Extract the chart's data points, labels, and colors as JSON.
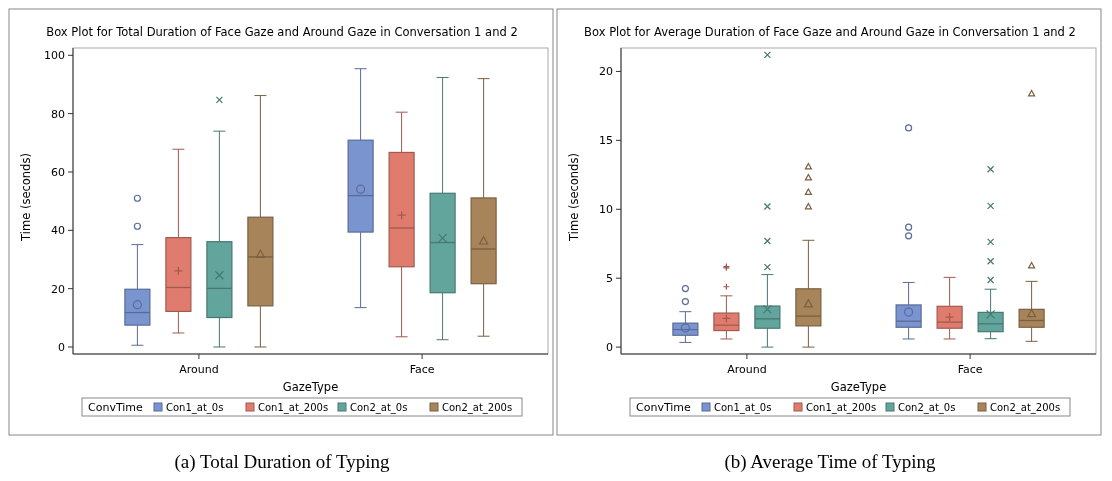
{
  "chart_data": [
    {
      "type": "box",
      "title": "Box Plot for Total Duration of Face Gaze and Around Gaze in Conversation 1 and 2",
      "xlabel": "GazeType",
      "ylabel": "Time (seconds)",
      "legend_title": "ConvTime",
      "legend": "bottom",
      "categories": [
        "Around",
        "Face"
      ],
      "ylim": [
        -2.4,
        102.5
      ],
      "yticks": [
        0,
        20,
        40,
        60,
        80,
        100
      ],
      "annotations": [
        "(a) Total Duration of Typing"
      ],
      "series": [
        {
          "name": "Con1_at_0s",
          "color": "#7a94d0",
          "marker": "circle",
          "boxes": [
            {
              "low": 0.6,
              "q1": 7.5,
              "median": 11.8,
              "q3": 19.8,
              "high": 35.1,
              "mean": 14.5,
              "outliers": [
                41.4,
                51
              ]
            },
            {
              "low": 13.5,
              "q1": 39.4,
              "median": 51.9,
              "q3": 70.9,
              "high": 95.4,
              "mean": 54.1
            }
          ]
        },
        {
          "name": "Con1_at_200s",
          "color": "#e07c6e",
          "marker": "cross",
          "boxes": [
            {
              "low": 4.8,
              "q1": 12.2,
              "median": 20.4,
              "q3": 37.5,
              "high": 67.8,
              "mean": 26.1
            },
            {
              "low": 3.5,
              "q1": 27.5,
              "median": 40.8,
              "q3": 66.7,
              "high": 80.5,
              "mean": 45.2
            }
          ]
        },
        {
          "name": "Con2_at_0s",
          "color": "#62a59c",
          "marker": "x",
          "boxes": [
            {
              "low": 0,
              "q1": 10.1,
              "median": 20.1,
              "q3": 36.1,
              "high": 74,
              "mean": 24.6,
              "outliers": [
                84.7
              ]
            },
            {
              "low": 2.5,
              "q1": 18.6,
              "median": 35.8,
              "q3": 52.7,
              "high": 92.4,
              "mean": 37.3
            }
          ]
        },
        {
          "name": "Con2_at_200s",
          "color": "#a8845a",
          "marker": "triangle",
          "boxes": [
            {
              "low": 0,
              "q1": 14.1,
              "median": 30.9,
              "q3": 44.5,
              "high": 86.2,
              "mean": 31.8
            },
            {
              "low": 3.7,
              "q1": 21.7,
              "median": 33.6,
              "q3": 51.1,
              "high": 92,
              "mean": 36.4
            }
          ]
        }
      ]
    },
    {
      "type": "box",
      "title": "Box Plot for Average Duration of Face Gaze and Around Gaze in Conversation 1 and 2",
      "xlabel": "GazeType",
      "ylabel": "Time (seconds)",
      "legend_title": "ConvTime",
      "legend": "bottom",
      "categories": [
        "Around",
        "Face"
      ],
      "ylim": [
        -0.5,
        21.7
      ],
      "yticks": [
        0,
        5,
        10,
        15,
        20
      ],
      "annotations": [
        "(b) Average Time of Typing"
      ],
      "series": [
        {
          "name": "Con1_at_0s",
          "color": "#7a94d0",
          "marker": "circle",
          "boxes": [
            {
              "low": 0.34,
              "q1": 0.86,
              "median": 1.27,
              "q3": 1.74,
              "high": 2.57,
              "mean": 1.39,
              "outliers": [
                3.3,
                4.25
              ]
            },
            {
              "low": 0.59,
              "q1": 1.44,
              "median": 1.88,
              "q3": 3.06,
              "high": 4.69,
              "mean": 2.54,
              "outliers": [
                8.07,
                8.7,
                15.9
              ]
            }
          ]
        },
        {
          "name": "Con1_at_200s",
          "color": "#e07c6e",
          "marker": "cross",
          "boxes": [
            {
              "low": 0.59,
              "q1": 1.2,
              "median": 1.59,
              "q3": 2.47,
              "high": 3.72,
              "mean": 2.08,
              "outliers": [
                4.38,
                5.75,
                5.84
              ]
            },
            {
              "low": 0.59,
              "q1": 1.37,
              "median": 1.81,
              "q3": 2.96,
              "high": 5.06,
              "mean": 2.18
            }
          ]
        },
        {
          "name": "Con2_at_0s",
          "color": "#62a59c",
          "marker": "x",
          "boxes": [
            {
              "low": 0,
              "q1": 1.37,
              "median": 2.05,
              "q3": 2.98,
              "high": 5.26,
              "mean": 2.74,
              "outliers": [
                5.8,
                7.7,
                10.2,
                21.2
              ]
            },
            {
              "low": 0.61,
              "q1": 1.12,
              "median": 1.69,
              "q3": 2.52,
              "high": 4.2,
              "mean": 2.37,
              "outliers": [
                4.87,
                6.23,
                7.63,
                10.25,
                12.9
              ]
            }
          ]
        },
        {
          "name": "Con2_at_200s",
          "color": "#a8845a",
          "marker": "triangle",
          "boxes": [
            {
              "low": 0,
              "q1": 1.54,
              "median": 2.25,
              "q3": 4.23,
              "high": 7.75,
              "mean": 3.15,
              "outliers": [
                10.2,
                11.25,
                12.3,
                13.1
              ]
            },
            {
              "low": 0.42,
              "q1": 1.44,
              "median": 1.93,
              "q3": 2.74,
              "high": 4.77,
              "mean": 2.44,
              "outliers": [
                5.92,
                18.4
              ]
            }
          ]
        }
      ]
    }
  ]
}
